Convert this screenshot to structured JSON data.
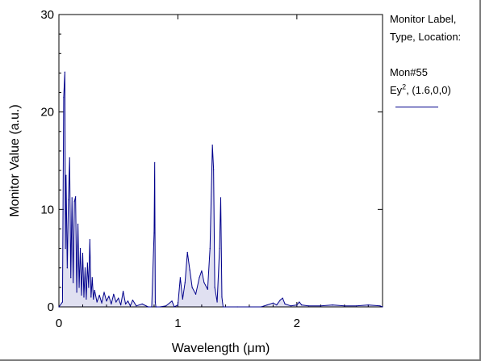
{
  "chart_data": {
    "type": "line",
    "xlabel": "Wavelength (μm)",
    "ylabel": "Monitor Value (a.u.)",
    "xlim": [
      0,
      2.72
    ],
    "ylim": [
      0,
      30
    ],
    "x_ticks": [
      "0",
      "1",
      "2"
    ],
    "y_ticks": [
      "0",
      "10",
      "20",
      "30"
    ],
    "legend": {
      "position": "right",
      "header_line1": "Monitor Label,",
      "header_line2": "Type, Location:",
      "monitor": "Mon#55",
      "quantity": "Ey",
      "quantity_power": "2",
      "location": ", (1.6,0,0)"
    },
    "series": [
      {
        "color": "#00008b",
        "x": [
          0.0,
          0.03,
          0.04,
          0.05,
          0.055,
          0.06,
          0.07,
          0.08,
          0.09,
          0.1,
          0.11,
          0.12,
          0.13,
          0.14,
          0.15,
          0.16,
          0.17,
          0.18,
          0.19,
          0.2,
          0.21,
          0.22,
          0.23,
          0.24,
          0.25,
          0.26,
          0.27,
          0.28,
          0.29,
          0.3,
          0.32,
          0.34,
          0.36,
          0.38,
          0.4,
          0.42,
          0.44,
          0.46,
          0.48,
          0.5,
          0.52,
          0.54,
          0.56,
          0.58,
          0.6,
          0.62,
          0.65,
          0.7,
          0.75,
          0.78,
          0.8,
          0.805,
          0.81,
          0.815,
          0.82,
          0.85,
          0.9,
          0.95,
          0.97,
          1.0,
          1.02,
          1.04,
          1.06,
          1.08,
          1.1,
          1.12,
          1.15,
          1.18,
          1.2,
          1.22,
          1.25,
          1.27,
          1.29,
          1.3,
          1.31,
          1.33,
          1.35,
          1.36,
          1.37,
          1.38,
          1.4,
          1.5,
          1.6,
          1.7,
          1.75,
          1.8,
          1.83,
          1.86,
          1.88,
          1.9,
          1.95,
          2.0,
          2.02,
          2.04,
          2.1,
          2.2,
          2.3,
          2.4,
          2.5,
          2.6,
          2.7,
          2.72
        ],
        "y": [
          0.0,
          0.5,
          21.5,
          24.1,
          6.0,
          13.5,
          4.0,
          11.0,
          15.3,
          3.0,
          11.2,
          2.5,
          10.8,
          11.3,
          1.5,
          8.5,
          2.0,
          6.0,
          1.2,
          5.5,
          1.0,
          4.0,
          0.8,
          4.5,
          2.0,
          6.9,
          1.0,
          3.0,
          0.8,
          1.7,
          0.5,
          1.2,
          0.4,
          1.5,
          0.6,
          1.1,
          0.3,
          1.3,
          0.5,
          0.9,
          0.2,
          1.6,
          0.3,
          0.6,
          0.1,
          0.7,
          0.1,
          0.3,
          0.0,
          0.0,
          7.6,
          14.8,
          0.5,
          0.0,
          0.0,
          0.0,
          0.1,
          0.6,
          0.0,
          0.2,
          3.0,
          0.8,
          2.5,
          5.6,
          3.8,
          2.0,
          1.3,
          3.0,
          3.7,
          2.5,
          1.8,
          6.0,
          16.6,
          14.1,
          2.0,
          0.5,
          6.0,
          11.2,
          1.0,
          0.0,
          0.0,
          0.0,
          0.0,
          0.0,
          0.2,
          0.4,
          0.2,
          0.7,
          0.9,
          0.3,
          0.1,
          0.2,
          0.5,
          0.2,
          0.1,
          0.1,
          0.2,
          0.1,
          0.1,
          0.2,
          0.1,
          0.0
        ]
      }
    ]
  }
}
